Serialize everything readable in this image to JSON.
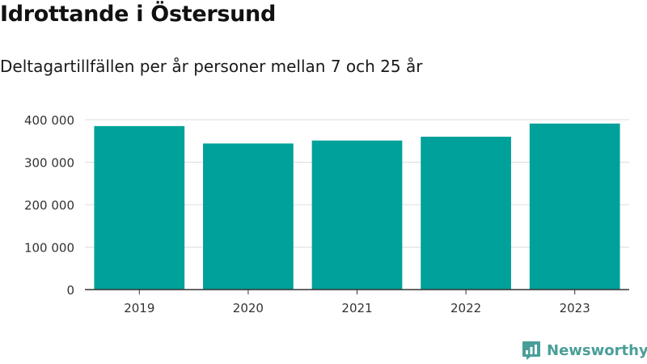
{
  "header": {
    "title": "Idrottande i Östersund",
    "subtitle": "Deltagartillfällen per år personer mellan 7 och 25 år"
  },
  "brand": {
    "name": "Newsworthy",
    "color": "#4a9e99"
  },
  "colors": {
    "bar": "#00a19a",
    "grid": "#dddddd",
    "axis": "#333333"
  },
  "chart_data": {
    "type": "bar",
    "title": "Idrottande i Östersund",
    "subtitle": "Deltagartillfällen per år personer mellan 7 och 25 år",
    "xlabel": "",
    "ylabel": "",
    "categories": [
      "2019",
      "2020",
      "2021",
      "2022",
      "2023"
    ],
    "values": [
      385000,
      344000,
      351000,
      360000,
      391000
    ],
    "ylim": [
      0,
      400000
    ],
    "yticks": [
      0,
      100000,
      200000,
      300000,
      400000
    ],
    "ytick_labels": [
      "0",
      "100 000",
      "200 000",
      "300 000",
      "400 000"
    ],
    "grid": true,
    "legend": "none"
  }
}
